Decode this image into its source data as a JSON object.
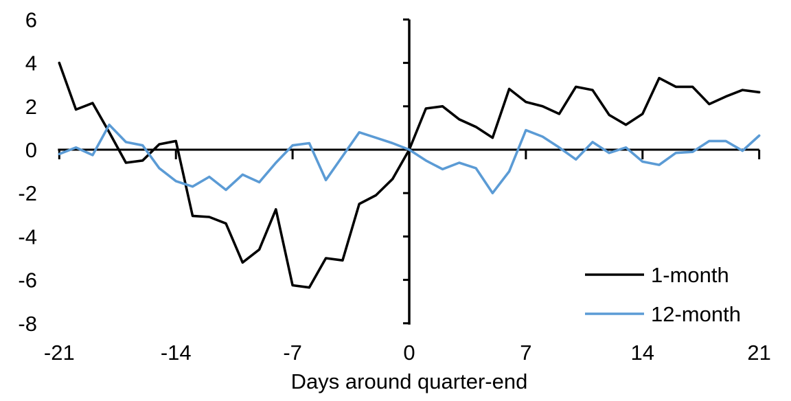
{
  "chart_data": {
    "type": "line",
    "xlabel": "Days around quarter-end",
    "x": [
      -21,
      -20,
      -19,
      -18,
      -17,
      -16,
      -15,
      -14,
      -13,
      -12,
      -11,
      -10,
      -9,
      -8,
      -7,
      -6,
      -5,
      -4,
      -3,
      -2,
      -1,
      0,
      1,
      2,
      3,
      4,
      5,
      6,
      7,
      8,
      9,
      10,
      11,
      12,
      13,
      14,
      15,
      16,
      17,
      18,
      19,
      20,
      21
    ],
    "series": [
      {
        "name": "1-month",
        "color": "#000000",
        "values": [
          4.0,
          1.85,
          2.15,
          0.8,
          -0.6,
          -0.5,
          0.25,
          0.4,
          -3.05,
          -3.1,
          -3.4,
          -5.2,
          -4.6,
          -2.75,
          -6.25,
          -6.35,
          -5.0,
          -5.1,
          -2.5,
          -2.1,
          -1.35,
          0.0,
          1.9,
          2.0,
          1.4,
          1.05,
          0.55,
          2.8,
          2.2,
          2.0,
          1.65,
          2.9,
          2.75,
          1.6,
          1.15,
          1.65,
          3.3,
          2.9,
          2.9,
          2.1,
          2.45,
          2.75,
          2.65
        ]
      },
      {
        "name": "12-month",
        "color": "#5B9BD5",
        "values": [
          -0.2,
          0.1,
          -0.25,
          1.15,
          0.35,
          0.2,
          -0.85,
          -1.45,
          -1.7,
          -1.25,
          -1.85,
          -1.15,
          -1.5,
          -0.6,
          0.2,
          0.3,
          -1.4,
          -0.3,
          0.8,
          0.55,
          0.3,
          0.0,
          -0.5,
          -0.9,
          -0.6,
          -0.85,
          -2.0,
          -1.0,
          0.9,
          0.6,
          0.1,
          -0.45,
          0.35,
          -0.15,
          0.1,
          -0.55,
          -0.7,
          -0.15,
          -0.1,
          0.4,
          0.4,
          -0.05,
          0.65
        ]
      }
    ],
    "x_ticks": [
      -21,
      -14,
      -7,
      0,
      7,
      14,
      21
    ],
    "y_ticks": [
      6,
      4,
      2,
      0,
      -2,
      -4,
      -6,
      -8
    ],
    "xlim": [
      -21,
      21
    ],
    "ylim": [
      -8,
      6
    ],
    "grid": false,
    "legend_position": "lower-right",
    "axis_color": "#000000"
  }
}
